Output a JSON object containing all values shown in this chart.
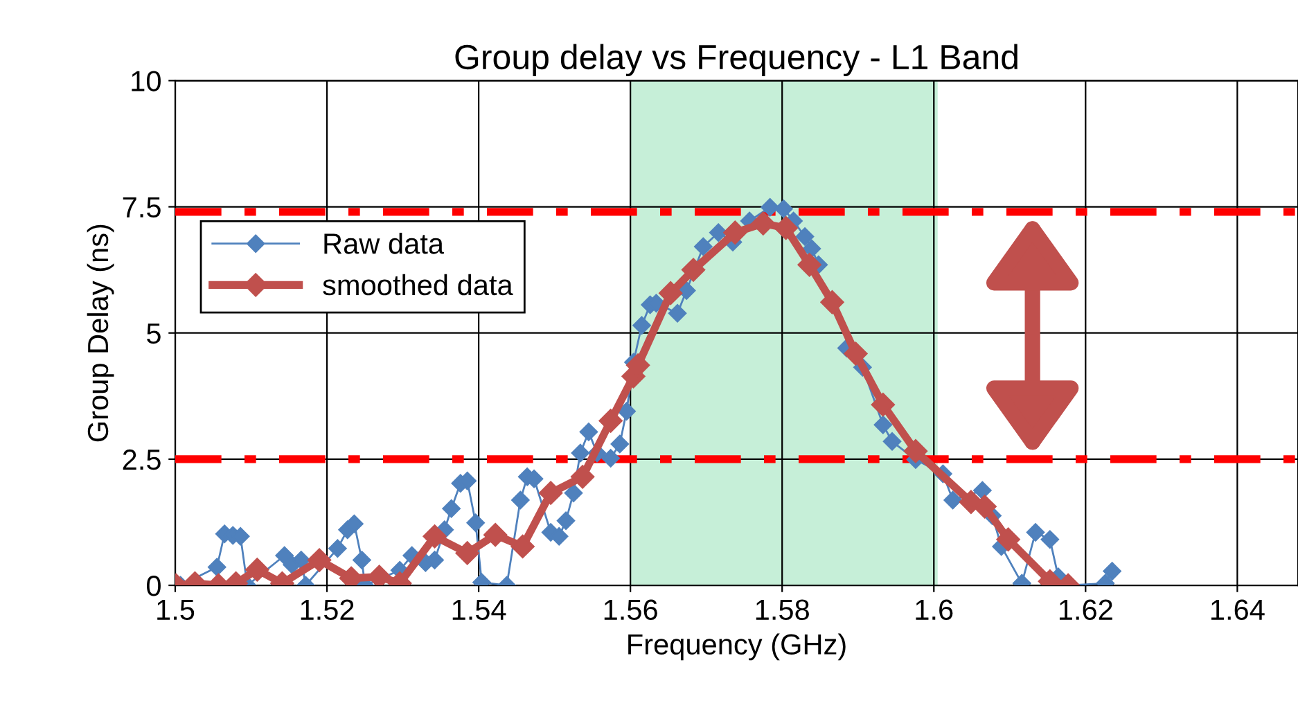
{
  "chart_data": {
    "type": "line",
    "title": "Group delay vs Frequency - L1 Band",
    "xlabel": "Frequency (GHz)",
    "ylabel": "Group Delay (ns)",
    "xlim": [
      1.5,
      1.648
    ],
    "xticks": [
      1.5,
      1.52,
      1.54,
      1.56,
      1.58,
      1.6,
      1.62,
      1.64
    ],
    "ylim": [
      0,
      10
    ],
    "yticks": [
      0,
      2.5,
      5,
      7.5,
      10
    ],
    "grid": true,
    "legend": "top left",
    "series": [
      {
        "name": "Raw data",
        "color": "#4f81bd",
        "marker": "diamond",
        "x": [
          1.5007,
          1.5055,
          1.5065,
          1.5076,
          1.5086,
          1.5095,
          1.5144,
          1.5154,
          1.5166,
          1.5172,
          1.5214,
          1.5227,
          1.5236,
          1.5246,
          1.525,
          1.5296,
          1.5312,
          1.533,
          1.5342,
          1.5355,
          1.5364,
          1.5376,
          1.5385,
          1.5396,
          1.5404,
          1.5437,
          1.5455,
          1.5464,
          1.5473,
          1.5495,
          1.5506,
          1.5515,
          1.5525,
          1.5534,
          1.5545,
          1.5556,
          1.5574,
          1.5586,
          1.5595,
          1.5604,
          1.5615,
          1.5626,
          1.5634,
          1.5662,
          1.5674,
          1.5696,
          1.5716,
          1.5735,
          1.5757,
          1.5784,
          1.5802,
          1.5815,
          1.583,
          1.5839,
          1.5848,
          1.5866,
          1.5885,
          1.5906,
          1.5933,
          1.5945,
          1.5976,
          1.6012,
          1.6025,
          1.6064,
          1.6077,
          1.6089,
          1.6116,
          1.6134,
          1.6153,
          1.6164,
          1.6177,
          1.6226,
          1.6235
        ],
        "values": [
          0,
          0.36,
          1.02,
          0.99,
          0.97,
          0,
          0.59,
          0.41,
          0.5,
          0,
          0.73,
          1.1,
          1.22,
          0.5,
          0,
          0.3,
          0.59,
          0.45,
          0.5,
          1.1,
          1.52,
          2.02,
          2.07,
          1.24,
          0.06,
          0,
          1.69,
          2.15,
          2.11,
          1.05,
          0.97,
          1.28,
          1.83,
          2.62,
          3.04,
          2.62,
          2.52,
          2.8,
          3.45,
          4.42,
          5.15,
          5.56,
          5.59,
          5.39,
          5.84,
          6.71,
          6.99,
          6.8,
          7.22,
          7.49,
          7.46,
          7.22,
          6.91,
          6.67,
          6.35,
          null,
          4.7,
          4.32,
          3.18,
          2.85,
          2.49,
          2.21,
          1.69,
          1.88,
          1.38,
          0.77,
          0.04,
          1.05,
          0.91,
          0.17,
          0,
          0.04,
          0.28
        ]
      },
      {
        "name": "smoothed data",
        "color": "#c0504d",
        "marker": "diamond",
        "x": [
          1.5001,
          1.5026,
          1.5057,
          1.508,
          1.5108,
          1.5141,
          1.519,
          1.5232,
          1.5269,
          1.5296,
          1.5342,
          1.5385,
          1.5422,
          1.5458,
          1.5495,
          1.5537,
          1.5574,
          1.5604,
          1.561,
          1.5653,
          1.5683,
          1.5738,
          1.5775,
          1.5805,
          1.5836,
          1.5866,
          1.5897,
          1.5933,
          1.5976,
          1.6049,
          1.6067,
          1.6098,
          1.6153,
          1.6177
        ],
        "values": [
          0,
          0.04,
          0,
          0.04,
          0.31,
          0.04,
          0.5,
          0.14,
          0.17,
          0.04,
          0.97,
          0.64,
          1.0,
          0.77,
          1.83,
          2.15,
          3.26,
          4.14,
          4.36,
          5.79,
          6.25,
          6.99,
          7.17,
          7.08,
          6.35,
          5.61,
          4.59,
          3.58,
          2.66,
          1.65,
          1.56,
          0.91,
          0.08,
          0
        ]
      }
    ],
    "ref_lines": [
      {
        "axis": "y",
        "value": 7.4,
        "color": "#ff0000",
        "line_style": "dashdot"
      },
      {
        "axis": "y",
        "value": 2.5,
        "color": "#ff0000",
        "line_style": "dashdot"
      }
    ],
    "bands": [
      {
        "axis": "x",
        "from": 1.56,
        "to": 1.6005,
        "color": "#c6efd8"
      }
    ]
  }
}
